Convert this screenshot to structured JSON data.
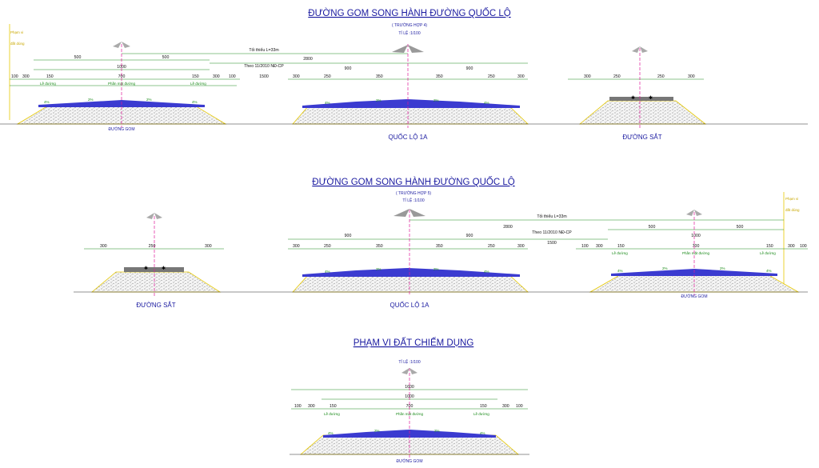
{
  "titles": {
    "t1": "ĐƯỜNG GOM SONG HÀNH ĐƯỜNG QUỐC LỘ",
    "t1_case": "( TRƯỜNG HỢP 4)",
    "t1_scale": "TỈ LỆ :1/100",
    "t2": "ĐƯỜNG GOM SONG HÀNH ĐƯỜNG QUỐC LỘ",
    "t2_case": "( TRƯỜNG HỢP 5)",
    "t2_scale": "TỈ LỆ :1/100",
    "t3": "PHẠM VI ĐẤT CHIẾM DỤNG",
    "t3_scale": "TỈ LỆ :1/100"
  },
  "labels": {
    "duong_gom": "ĐƯỜNG GOM",
    "quoc_lo": "QUỐC LỘ 1A",
    "duong_sat": "ĐƯỜNG SẮT",
    "toi_thieu": "Tối thiểu L=33m",
    "theo_nd": "Theo 11/2010 NĐ-CP",
    "phan_mat_duong": "Phần mặt đường",
    "le_duong": "Lề đường",
    "pham_vi": "Phạm vi",
    "dat_dung": "đất dùng"
  },
  "dims": {
    "d100": "100",
    "d300": "300",
    "d150": "150",
    "d700": "700",
    "d500": "500",
    "d1000": "1000",
    "d1500": "1500",
    "d2800": "2800",
    "d900": "900",
    "d250": "250",
    "d350": "350",
    "d1600": "1600"
  },
  "slopes": {
    "s4": "4%",
    "s2": "2%"
  },
  "colors": {
    "blue": "#1a1aa0",
    "green": "#1a8a1a",
    "magenta": "#e0199a",
    "yellow": "#e6c800",
    "road": "#3b3bd0"
  }
}
